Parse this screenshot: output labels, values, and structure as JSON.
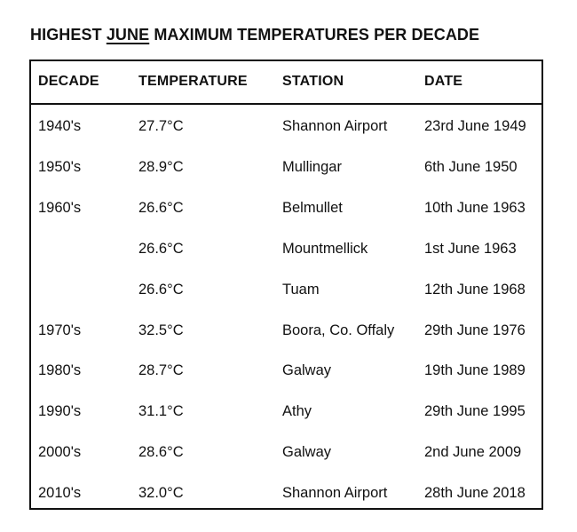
{
  "title": {
    "prefix": "HIGHEST ",
    "underlined": "JUNE",
    "suffix": " MAXIMUM TEMPERATURES PER DECADE"
  },
  "table": {
    "headers": [
      "DECADE",
      "TEMPERATURE",
      "STATION",
      "DATE"
    ],
    "rows": [
      {
        "decade": "1940's",
        "temperature": "27.7°C",
        "station": "Shannon Airport",
        "date": "23rd June 1949"
      },
      {
        "decade": "1950's",
        "temperature": "28.9°C",
        "station": "Mullingar",
        "date": "6th June 1950"
      },
      {
        "decade": "1960's",
        "temperature": "26.6°C",
        "station": "Belmullet",
        "date": "10th June 1963"
      },
      {
        "decade": "",
        "temperature": "26.6°C",
        "station": "Mountmellick",
        "date": "1st June 1963"
      },
      {
        "decade": "",
        "temperature": "26.6°C",
        "station": "Tuam",
        "date": "12th June 1968"
      },
      {
        "decade": "1970's",
        "temperature": "32.5°C",
        "station": "Boora, Co. Offaly",
        "date": "29th June 1976"
      },
      {
        "decade": "1980's",
        "temperature": "28.7°C",
        "station": "Galway",
        "date": "19th June 1989"
      },
      {
        "decade": "1990's",
        "temperature": "31.1°C",
        "station": "Athy",
        "date": "29th June 1995"
      },
      {
        "decade": "2000's",
        "temperature": "28.6°C",
        "station": "Galway",
        "date": "2nd June 2009"
      },
      {
        "decade": "2010's",
        "temperature": "32.0°C",
        "station": "Shannon Airport",
        "date": "28th June 2018"
      }
    ]
  }
}
